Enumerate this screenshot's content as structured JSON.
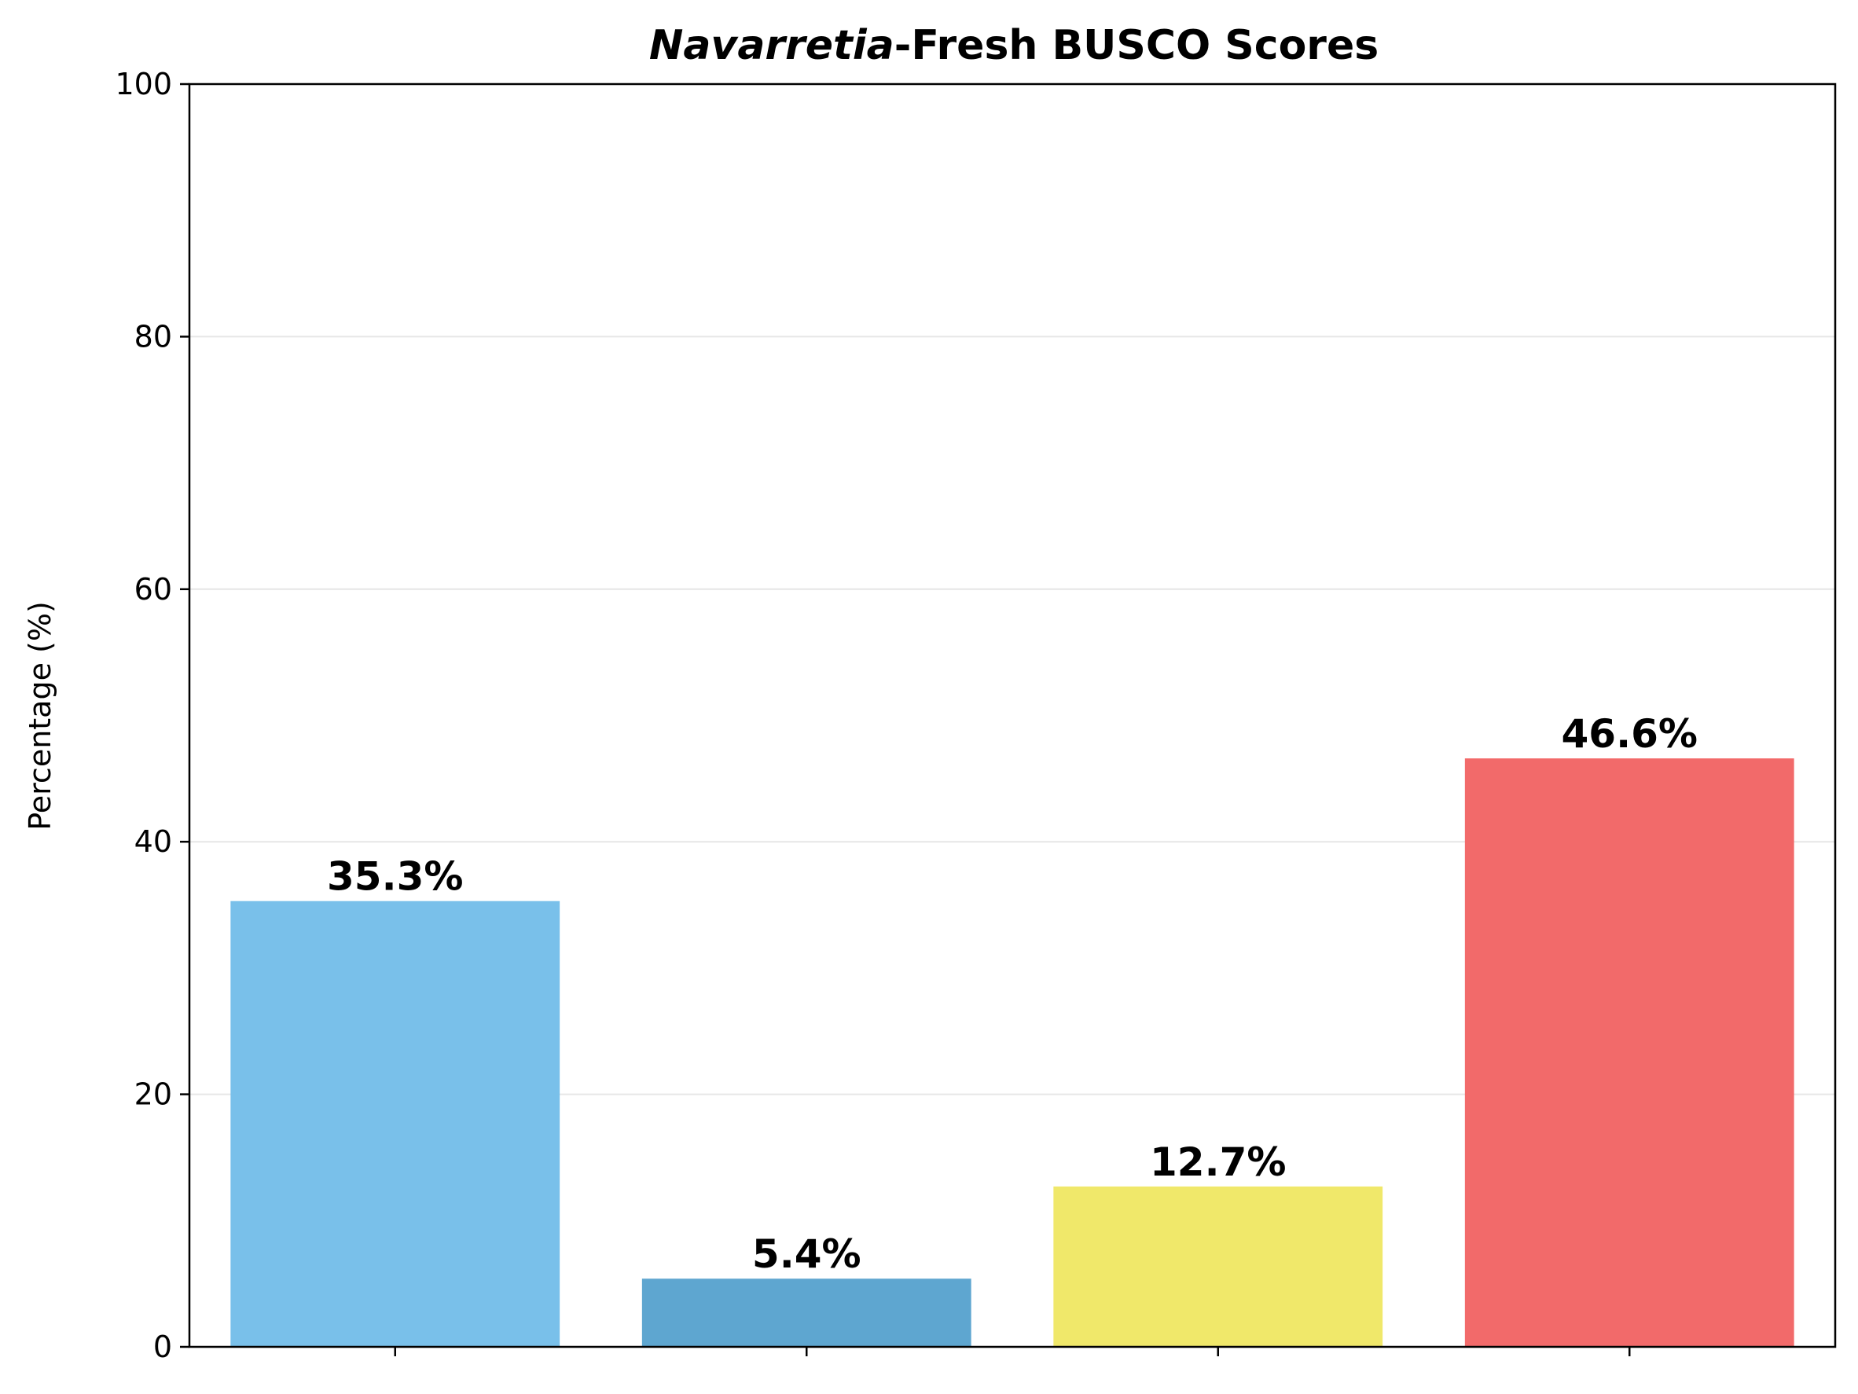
{
  "chart_data": {
    "type": "bar",
    "title_italic": "Navarretia",
    "title_rest": "-Fresh BUSCO Scores",
    "xlabel": "",
    "ylabel": "Percentage (%)",
    "ylim": [
      0,
      100
    ],
    "yticks": [
      0,
      20,
      40,
      60,
      80,
      100
    ],
    "grid": "horizontal",
    "legend": "none",
    "categories": [
      "",
      "",
      "",
      ""
    ],
    "values": [
      35.3,
      5.4,
      12.7,
      46.6
    ],
    "data_labels": [
      "35.3%",
      "5.4%",
      "12.7%",
      "46.6%"
    ],
    "colors": [
      "#79c0ea",
      "#5ea6d0",
      "#f0e86a",
      "#f26a6a"
    ]
  }
}
